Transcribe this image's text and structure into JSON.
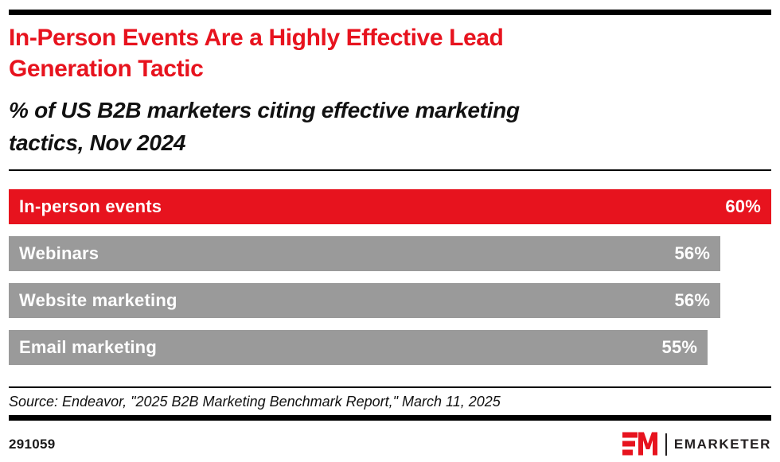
{
  "header": {
    "title": "In-Person Events Are a Highly Effective Lead\nGeneration Tactic",
    "subtitle": "% of US B2B marketers citing effective marketing\ntactics, Nov 2024"
  },
  "chart_data": {
    "type": "bar",
    "orientation": "horizontal",
    "title": "In-Person Events Are a Highly Effective Lead Generation Tactic",
    "subtitle": "% of US B2B marketers citing effective marketing tactics, Nov 2024",
    "categories": [
      "In-person events",
      "Webinars",
      "Website marketing",
      "Email marketing"
    ],
    "values": [
      60,
      56,
      56,
      55
    ],
    "value_labels": [
      "60%",
      "56%",
      "56%",
      "55%"
    ],
    "xlim": [
      0,
      60
    ],
    "grid": false,
    "legend": "none",
    "highlight_index": 0,
    "colors": {
      "highlight": "#E7131E",
      "default": "#9A9A9A",
      "bar_text": "#FFFFFF"
    }
  },
  "source": {
    "text": "Source: Endeavor, \"2025 B2B Marketing Benchmark Report,\" March 11, 2025"
  },
  "footer": {
    "chart_id": "291059",
    "brand": "EMARKETER",
    "brand_color": "#E7131E",
    "logo_icon": "emarketer-em-mark"
  }
}
